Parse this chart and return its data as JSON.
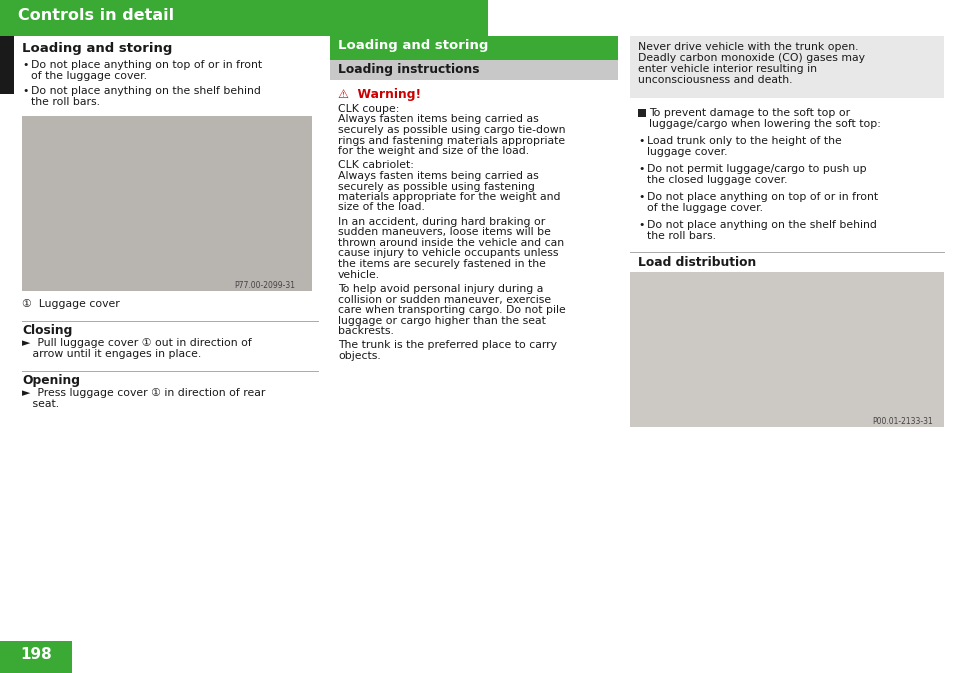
{
  "bg_color": "#ffffff",
  "header_green": "#3aaa35",
  "header_text": "Controls in detail",
  "header_text_color": "#ffffff",
  "black_tab_color": "#1a1a1a",
  "section1_title": "Loading and storing",
  "section1_bullets": [
    "Do not place anything on top of or in front\nof the luggage cover.",
    "Do not place anything on the shelf behind\nthe roll bars."
  ],
  "caption_circle": "①",
  "caption_text": "Luggage cover",
  "closing_title": "Closing",
  "closing_text_line1": "►  Pull luggage cover ① out in direction of",
  "closing_text_line2": "   arrow until it engages in place.",
  "opening_title": "Opening",
  "opening_text_line1": "►  Press luggage cover ① in direction of rear",
  "opening_text_line2": "   seat.",
  "col2_header": "Loading and storing",
  "col2_subheader": "Loading instructions",
  "col2_subheader_bg": "#c8c8c8",
  "warning_text": "Warning!",
  "warning_color": "#cc0000",
  "col2_body_lines": [
    "CLK coupe:",
    "Always fasten items being carried as",
    "securely as possible using cargo tie-down",
    "rings and fastening materials appropriate",
    "for the weight and size of the load.",
    "",
    "CLK cabriolet:",
    "Always fasten items being carried as",
    "securely as possible using fastening",
    "materials appropriate for the weight and",
    "size of the load.",
    "",
    "In an accident, during hard braking or",
    "sudden maneuvers, loose items will be",
    "thrown around inside the vehicle and can",
    "cause injury to vehicle occupants unless",
    "the items are securely fastened in the",
    "vehicle.",
    "",
    "To help avoid personal injury during a",
    "collision or sudden maneuver, exercise",
    "care when transporting cargo. Do not pile",
    "luggage or cargo higher than the seat",
    "backrests.",
    "",
    "The trunk is the preferred place to carry",
    "objects."
  ],
  "col3_note_bg": "#e8e8e8",
  "col3_note_lines": [
    "Never drive vehicle with the trunk open.",
    "Deadly carbon monoxide (CO) gases may",
    "enter vehicle interior resulting in",
    "unconsciousness and death."
  ],
  "col3_prevent_line1": "To prevent damage to the soft top or",
  "col3_prevent_line2": "luggage/cargo when lowering the soft top:",
  "col3_bullets": [
    [
      "Load trunk only to the height of the",
      "luggage cover."
    ],
    [
      "Do not permit luggage/cargo to push up",
      "the closed luggage cover."
    ],
    [
      "Do not place anything on top of or in front",
      "of the luggage cover."
    ],
    [
      "Do not place anything on the shelf behind",
      "the roll bars."
    ]
  ],
  "load_dist_title": "Load distribution",
  "image_ref1": "P77.00-2099-31",
  "image_ref2": "P00.01-2133-31",
  "page_number": "198",
  "body_fontsize": 7.8,
  "title_fontsize": 9.5,
  "header_fontsize": 11.5
}
